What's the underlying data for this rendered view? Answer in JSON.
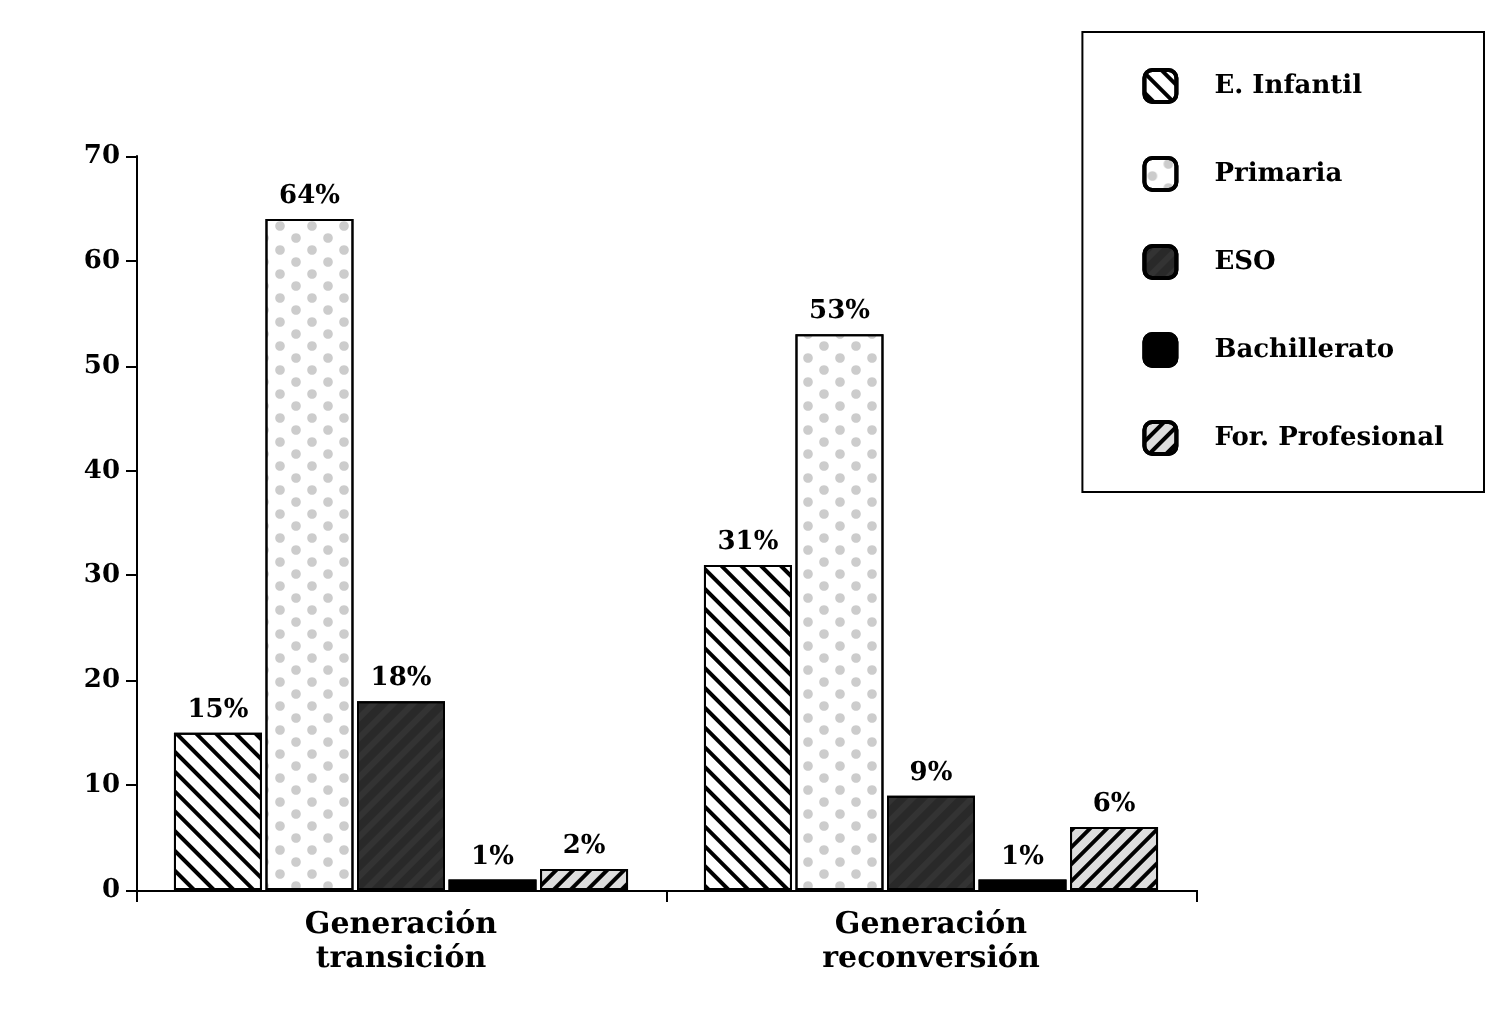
{
  "chart_data": {
    "type": "bar",
    "categories": [
      "Generación transición",
      "Generación reconversión"
    ],
    "series": [
      {
        "name": "E. Infantil",
        "color": "#ffffff",
        "values": [
          15,
          31
        ],
        "value_labels": [
          "15%",
          "31%"
        ]
      },
      {
        "name": "Primaria",
        "color": "#ffffff",
        "values": [
          64,
          53
        ],
        "value_labels": [
          "64%",
          "53%"
        ]
      },
      {
        "name": "ESO",
        "color": "#333333",
        "values": [
          18,
          9
        ],
        "value_labels": [
          "18%",
          "9%"
        ]
      },
      {
        "name": "Bachillerato",
        "color": "#000000",
        "values": [
          1,
          1
        ],
        "value_labels": [
          "1%",
          "1%"
        ]
      },
      {
        "name": "For. Profesional",
        "color": "#dddddd",
        "values": [
          2,
          6
        ],
        "value_labels": [
          "2%",
          "6%"
        ]
      }
    ],
    "ylim": [
      0,
      70
    ],
    "yticks": [
      0,
      10,
      20,
      30,
      40,
      50,
      60,
      70
    ],
    "grid": false,
    "legend": "top right"
  }
}
